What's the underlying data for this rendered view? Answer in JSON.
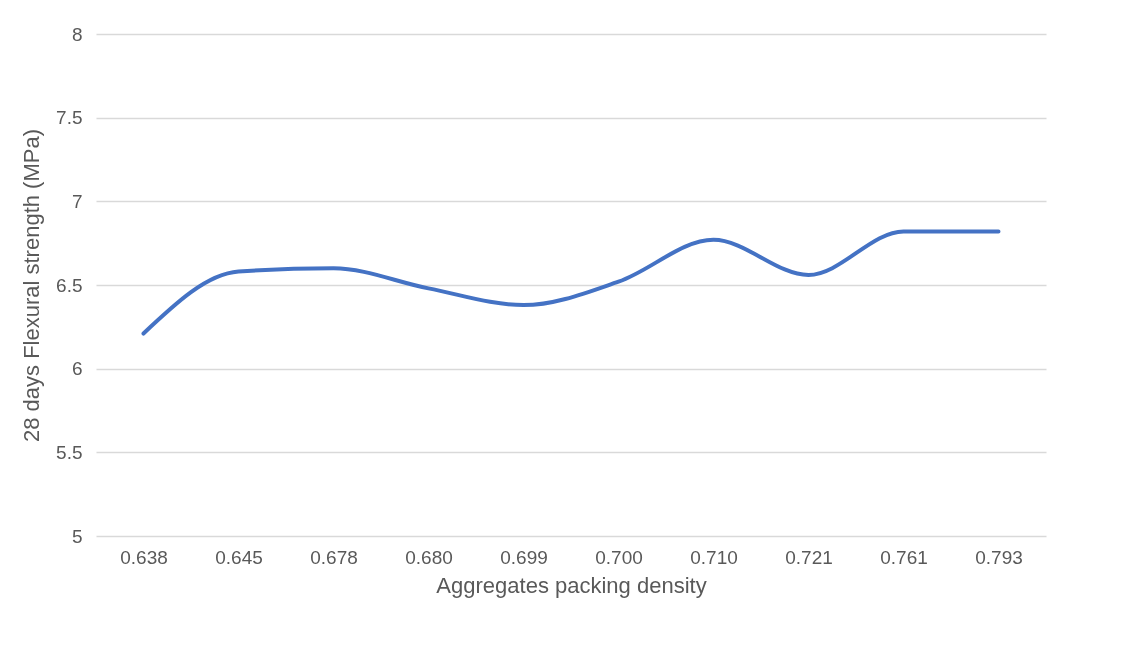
{
  "chart_data": {
    "type": "line",
    "xlabel": "Aggregates packing density",
    "ylabel": "28 days Flexural strength (MPa)",
    "categories": [
      "0.638",
      "0.645",
      "0.678",
      "0.680",
      "0.699",
      "0.700",
      "0.710",
      "0.721",
      "0.761",
      "0.793"
    ],
    "series": [
      {
        "color": "#4472c4",
        "values": [
          6.21,
          6.58,
          6.6,
          6.48,
          6.38,
          6.52,
          6.77,
          6.56,
          6.82,
          6.82
        ]
      }
    ],
    "ylim": [
      5,
      8
    ],
    "yticks": [
      5,
      5.5,
      6,
      6.5,
      7,
      7.5,
      8
    ],
    "grid": "y",
    "marker": "none",
    "line_style": "solid"
  }
}
